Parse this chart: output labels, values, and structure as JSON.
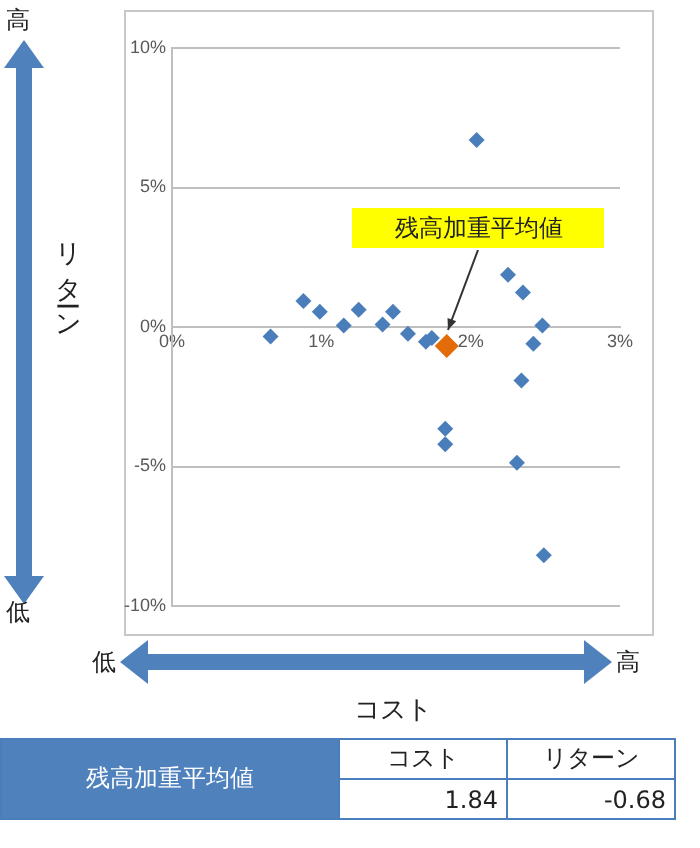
{
  "chart_data": {
    "type": "scatter",
    "xlabel": "コスト",
    "ylabel": "リターン",
    "xlim": [
      0,
      3
    ],
    "xticks": [
      {
        "value": 0,
        "label": "0%"
      },
      {
        "value": 1,
        "label": "1%"
      },
      {
        "value": 2,
        "label": "2%"
      },
      {
        "value": 3,
        "label": "3%"
      }
    ],
    "ylim": [
      -10,
      10
    ],
    "yticks": [
      {
        "value": -10,
        "label": "-10%"
      },
      {
        "value": -5,
        "label": "-5%"
      },
      {
        "value": 0,
        "label": "0%"
      },
      {
        "value": 5,
        "label": "5%"
      },
      {
        "value": 10,
        "label": "10%"
      }
    ],
    "grid": "y",
    "marker": "diamond",
    "series": [
      {
        "color": "#4a7ebb",
        "x": [
          0.66,
          0.88,
          0.99,
          1.15,
          1.25,
          1.41,
          1.48,
          1.58,
          1.7,
          1.74,
          1.83,
          1.83,
          2.04,
          2.25,
          2.35,
          2.48,
          2.42,
          2.34,
          2.31,
          2.49
        ],
        "values": [
          -0.34,
          0.93,
          0.55,
          0.05,
          0.62,
          0.09,
          0.55,
          -0.24,
          -0.53,
          -0.39,
          -3.65,
          -4.2,
          6.7,
          1.87,
          1.24,
          0.05,
          -0.6,
          -1.92,
          -4.87,
          -8.18
        ]
      },
      {
        "color": "#e36c09",
        "x": [
          1.84
        ],
        "values": [
          -0.68
        ]
      }
    ],
    "annotations": [
      {
        "text": "残高加重平均値",
        "x": 1.84,
        "y": -0.68
      },
      "高",
      "低",
      "低",
      "高",
      "残高加重平均値",
      "コスト",
      "リターン",
      "1.84",
      "-0.68"
    ]
  }
}
